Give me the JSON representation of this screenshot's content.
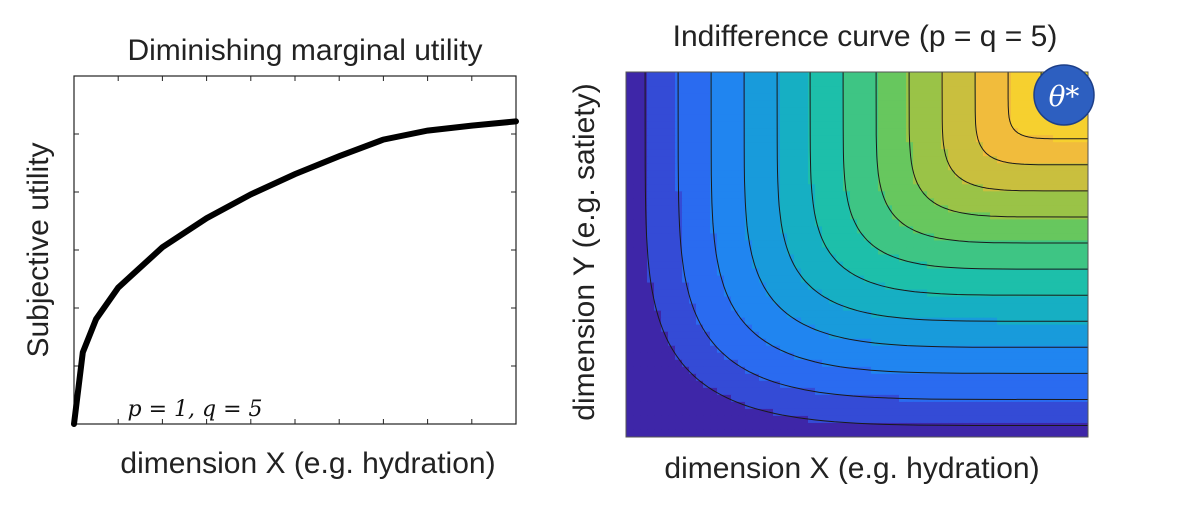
{
  "chart_data": [
    {
      "type": "line",
      "title": "Diminishing marginal utility",
      "xlabel": "dimension X (e.g. hydration)",
      "ylabel": "Subjective utility",
      "annotation": "p = 1, q = 5",
      "x": [
        0,
        0.02,
        0.05,
        0.1,
        0.2,
        0.3,
        0.4,
        0.5,
        0.6,
        0.7,
        0.8,
        0.9,
        1.0
      ],
      "y": [
        0,
        0.2365,
        0.3466,
        0.4507,
        0.5839,
        0.6802,
        0.7587,
        0.8258,
        0.885,
        0.9397,
        0.9696,
        0.986,
        1.0
      ],
      "xlim": [
        0,
        1
      ],
      "ylim": [
        0,
        1.15
      ],
      "grid": false,
      "series": [
        {
          "color": "#000000"
        }
      ]
    },
    {
      "type": "heatmap",
      "title": "Indifference curve (p = q = 5)",
      "xlabel": "dimension X (e.g. hydration)",
      "ylabel": "dimension Y (e.g. satiety)",
      "marker_label": "θ*",
      "marker_color": "#2d5fc0",
      "colormap": [
        "#3e26a8",
        "#2e5ff0",
        "#1f88f0",
        "#13aacc",
        "#1fc2a4",
        "#5cc863",
        "#abc23f",
        "#f0ba3d",
        "#f9d92a",
        "#fbe51e"
      ],
      "contour_levels": 14,
      "optimum": [
        0.97,
        0.96
      ],
      "p": 5,
      "q": 5,
      "grid": false
    }
  ]
}
